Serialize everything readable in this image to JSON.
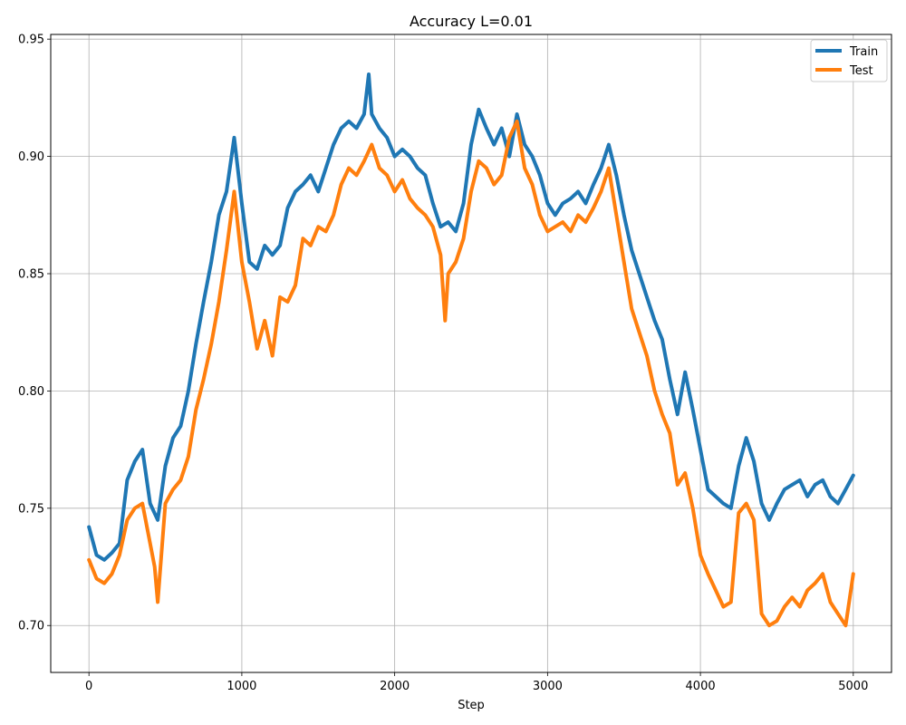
{
  "chart_data": {
    "type": "line",
    "title": "Accuracy L=0.01",
    "xlabel": "Step",
    "ylabel": "",
    "xlim": [
      -250,
      5250
    ],
    "ylim": [
      0.68,
      0.952
    ],
    "xticks": [
      0,
      1000,
      2000,
      3000,
      4000,
      5000
    ],
    "yticks": [
      0.7,
      0.75,
      0.8,
      0.85,
      0.9,
      0.95
    ],
    "xtick_labels": [
      "0",
      "1000",
      "2000",
      "3000",
      "4000",
      "5000"
    ],
    "ytick_labels": [
      "0.70",
      "0.75",
      "0.80",
      "0.85",
      "0.90",
      "0.95"
    ],
    "grid": true,
    "legend_position": "top-right",
    "series": [
      {
        "name": "Train",
        "color": "#1f77b4",
        "x": [
          0,
          50,
          100,
          150,
          200,
          250,
          300,
          350,
          400,
          450,
          500,
          550,
          600,
          650,
          700,
          750,
          800,
          850,
          900,
          950,
          1000,
          1050,
          1100,
          1150,
          1200,
          1250,
          1300,
          1350,
          1400,
          1450,
          1500,
          1550,
          1600,
          1650,
          1700,
          1750,
          1800,
          1830,
          1850,
          1900,
          1950,
          2000,
          2050,
          2100,
          2150,
          2200,
          2250,
          2300,
          2350,
          2400,
          2450,
          2500,
          2550,
          2600,
          2650,
          2700,
          2750,
          2800,
          2850,
          2900,
          2950,
          3000,
          3050,
          3100,
          3150,
          3200,
          3250,
          3300,
          3350,
          3400,
          3450,
          3500,
          3550,
          3600,
          3650,
          3700,
          3750,
          3800,
          3850,
          3900,
          3950,
          4000,
          4050,
          4100,
          4150,
          4200,
          4250,
          4300,
          4350,
          4400,
          4450,
          4500,
          4550,
          4600,
          4650,
          4700,
          4750,
          4800,
          4850,
          4900,
          4950,
          5000
        ],
        "values": [
          0.742,
          0.73,
          0.728,
          0.731,
          0.735,
          0.762,
          0.77,
          0.775,
          0.752,
          0.745,
          0.768,
          0.78,
          0.785,
          0.8,
          0.82,
          0.838,
          0.855,
          0.875,
          0.885,
          0.908,
          0.88,
          0.855,
          0.852,
          0.862,
          0.858,
          0.862,
          0.878,
          0.885,
          0.888,
          0.892,
          0.885,
          0.895,
          0.905,
          0.912,
          0.915,
          0.912,
          0.918,
          0.935,
          0.918,
          0.912,
          0.908,
          0.9,
          0.903,
          0.9,
          0.895,
          0.892,
          0.88,
          0.87,
          0.872,
          0.868,
          0.88,
          0.905,
          0.92,
          0.912,
          0.905,
          0.912,
          0.9,
          0.918,
          0.905,
          0.9,
          0.892,
          0.88,
          0.875,
          0.88,
          0.882,
          0.885,
          0.88,
          0.888,
          0.895,
          0.905,
          0.892,
          0.875,
          0.86,
          0.85,
          0.84,
          0.83,
          0.822,
          0.805,
          0.79,
          0.808,
          0.792,
          0.775,
          0.758,
          0.755,
          0.752,
          0.75,
          0.768,
          0.78,
          0.77,
          0.752,
          0.745,
          0.752,
          0.758,
          0.76,
          0.762,
          0.755,
          0.76,
          0.762,
          0.755,
          0.752,
          0.758,
          0.764
        ]
      },
      {
        "name": "Test",
        "color": "#ff7f0e",
        "x": [
          0,
          50,
          100,
          150,
          200,
          250,
          300,
          350,
          400,
          430,
          450,
          500,
          550,
          600,
          650,
          700,
          750,
          800,
          850,
          900,
          950,
          1000,
          1050,
          1100,
          1150,
          1200,
          1250,
          1300,
          1350,
          1400,
          1450,
          1500,
          1550,
          1600,
          1650,
          1700,
          1750,
          1800,
          1850,
          1900,
          1950,
          2000,
          2050,
          2100,
          2150,
          2200,
          2250,
          2300,
          2330,
          2350,
          2400,
          2450,
          2500,
          2550,
          2600,
          2650,
          2700,
          2750,
          2800,
          2850,
          2900,
          2950,
          3000,
          3050,
          3100,
          3150,
          3200,
          3250,
          3300,
          3350,
          3400,
          3450,
          3500,
          3550,
          3600,
          3650,
          3700,
          3750,
          3800,
          3850,
          3900,
          3950,
          4000,
          4050,
          4100,
          4150,
          4200,
          4250,
          4300,
          4350,
          4400,
          4450,
          4500,
          4550,
          4600,
          4650,
          4700,
          4750,
          4800,
          4850,
          4900,
          4950,
          5000
        ],
        "values": [
          0.728,
          0.72,
          0.718,
          0.722,
          0.73,
          0.745,
          0.75,
          0.752,
          0.735,
          0.725,
          0.71,
          0.752,
          0.758,
          0.762,
          0.772,
          0.792,
          0.805,
          0.82,
          0.838,
          0.86,
          0.885,
          0.855,
          0.838,
          0.818,
          0.83,
          0.815,
          0.84,
          0.838,
          0.845,
          0.865,
          0.862,
          0.87,
          0.868,
          0.875,
          0.888,
          0.895,
          0.892,
          0.898,
          0.905,
          0.895,
          0.892,
          0.885,
          0.89,
          0.882,
          0.878,
          0.875,
          0.87,
          0.858,
          0.83,
          0.85,
          0.855,
          0.865,
          0.885,
          0.898,
          0.895,
          0.888,
          0.892,
          0.908,
          0.915,
          0.895,
          0.888,
          0.875,
          0.868,
          0.87,
          0.872,
          0.868,
          0.875,
          0.872,
          0.878,
          0.885,
          0.895,
          0.875,
          0.855,
          0.835,
          0.825,
          0.815,
          0.8,
          0.79,
          0.782,
          0.76,
          0.765,
          0.75,
          0.73,
          0.722,
          0.715,
          0.708,
          0.71,
          0.748,
          0.752,
          0.745,
          0.705,
          0.7,
          0.702,
          0.708,
          0.712,
          0.708,
          0.715,
          0.718,
          0.722,
          0.71,
          0.705,
          0.7,
          0.722
        ]
      }
    ]
  }
}
